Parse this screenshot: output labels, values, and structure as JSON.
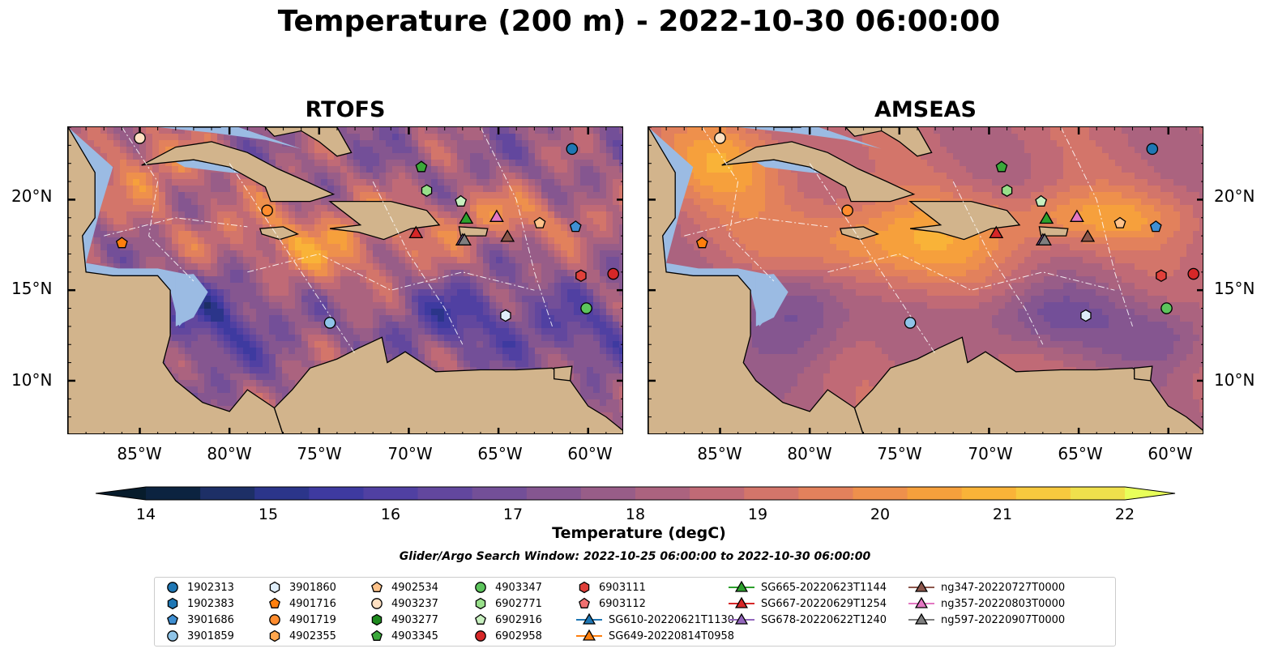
{
  "title": "Temperature (200 m) - 2022-10-30 06:00:00",
  "panels": [
    {
      "title": "RTOFS"
    },
    {
      "title": "AMSEAS"
    }
  ],
  "lat_ticks": [
    "20°N",
    "15°N",
    "10°N"
  ],
  "lon_ticks": [
    "85°W",
    "80°W",
    "75°W",
    "70°W",
    "65°W",
    "60°W"
  ],
  "colorbar": {
    "label": "Temperature (degC)",
    "ticks": [
      "14",
      "15",
      "16",
      "17",
      "18",
      "19",
      "20",
      "21",
      "22"
    ],
    "min": 14,
    "max": 22,
    "step": 0.5,
    "colors": [
      "#0c2340",
      "#1d2f66",
      "#2b358a",
      "#3e3aa0",
      "#5040a2",
      "#62479e",
      "#734f98",
      "#855690",
      "#985d88",
      "#ab637f",
      "#c06a76",
      "#d3756a",
      "#e2815c",
      "#ee904c",
      "#f6a03c",
      "#f9b338",
      "#f7c93e",
      "#efe04c"
    ],
    "over_color": "#e8ff5a",
    "under_color": "#071c2c"
  },
  "search_window": "Glider/Argo Search Window: 2022-10-25 06:00:00 to 2022-10-30 06:00:00",
  "legend": [
    {
      "label": "1902313",
      "marker": "circle",
      "color": "#1f77b4"
    },
    {
      "label": "1902383",
      "marker": "hexagon",
      "color": "#1f77b4"
    },
    {
      "label": "3901686",
      "marker": "pentagon",
      "color": "#3f8fd2"
    },
    {
      "label": "3901859",
      "marker": "circle",
      "color": "#8fc4e8"
    },
    {
      "label": "3901860",
      "marker": "hexagon",
      "color": "#dfeefa"
    },
    {
      "label": "4901716",
      "marker": "pentagon",
      "color": "#ff7f0e"
    },
    {
      "label": "4901719",
      "marker": "circle",
      "color": "#ff8c2e"
    },
    {
      "label": "4902355",
      "marker": "hexagon",
      "color": "#ffa64d"
    },
    {
      "label": "4902534",
      "marker": "pentagon",
      "color": "#ffc38a"
    },
    {
      "label": "4903237",
      "marker": "circle",
      "color": "#ffe0c2"
    },
    {
      "label": "4903277",
      "marker": "hexagon",
      "color": "#1e8a1e"
    },
    {
      "label": "4903345",
      "marker": "pentagon",
      "color": "#3aa83a"
    },
    {
      "label": "4903347",
      "marker": "circle",
      "color": "#5cc45c"
    },
    {
      "label": "6902771",
      "marker": "hexagon",
      "color": "#98df8a"
    },
    {
      "label": "6902916",
      "marker": "pentagon",
      "color": "#c8f0c0"
    },
    {
      "label": "6902958",
      "marker": "circle",
      "color": "#d62728"
    },
    {
      "label": "6903111",
      "marker": "hexagon",
      "color": "#e0403a"
    },
    {
      "label": "6903112",
      "marker": "pentagon",
      "color": "#f07070"
    },
    {
      "label": "SG610-20220621T1130",
      "marker": "triangle-line",
      "color": "#1f77b4"
    },
    {
      "label": "SG649-20220814T0958",
      "marker": "triangle-line",
      "color": "#ff7f0e"
    },
    {
      "label": "SG665-20220623T1144",
      "marker": "triangle-line",
      "color": "#2ca02c"
    },
    {
      "label": "SG667-20220629T1254",
      "marker": "triangle-line",
      "color": "#d62728"
    },
    {
      "label": "SG678-20220622T1240",
      "marker": "triangle-line",
      "color": "#9467bd"
    },
    {
      "label": "ng347-20220727T0000",
      "marker": "triangle-line",
      "color": "#8c564b"
    },
    {
      "label": "ng357-20220803T0000",
      "marker": "triangle-line",
      "color": "#e377c2"
    },
    {
      "label": "ng597-20220907T0000",
      "marker": "triangle-line",
      "color": "#7f7f7f"
    }
  ],
  "map": {
    "lon_range": [
      -89,
      -58
    ],
    "lat_range": [
      7,
      24
    ],
    "colors": {
      "land": "#d2b48c",
      "shallow": "#9bbbe3",
      "coast": "#000000"
    },
    "markers": [
      {
        "label": "4903237",
        "lon": -85.0,
        "lat": 23.4
      },
      {
        "label": "1902313",
        "lon": -60.9,
        "lat": 22.8
      },
      {
        "label": "4903345",
        "lon": -69.3,
        "lat": 21.8
      },
      {
        "label": "6902771",
        "lon": -69.0,
        "lat": 20.5
      },
      {
        "label": "6902916",
        "lon": -67.1,
        "lat": 19.9
      },
      {
        "label": "4901719",
        "lon": -77.9,
        "lat": 19.4
      },
      {
        "label": "4902534",
        "lon": -62.7,
        "lat": 18.7
      },
      {
        "label": "3901686",
        "lon": -60.7,
        "lat": 18.5
      },
      {
        "label": "4901716",
        "lon": -86.0,
        "lat": 17.6
      },
      {
        "label": "6903111",
        "lon": -60.4,
        "lat": 15.8
      },
      {
        "label": "6902958",
        "lon": -58.6,
        "lat": 15.9
      },
      {
        "label": "4903347",
        "lon": -60.1,
        "lat": 14.0
      },
      {
        "label": "3901860",
        "lon": -64.6,
        "lat": 13.6
      },
      {
        "label": "3901859",
        "lon": -74.4,
        "lat": 13.2
      },
      {
        "label": "SG665-20220623T1144",
        "lon": -66.8,
        "lat": 18.9
      },
      {
        "label": "SG667-20220629T1254",
        "lon": -69.6,
        "lat": 18.1
      },
      {
        "label": "SG678-20220622T1240",
        "lon": -67.0,
        "lat": 17.7
      },
      {
        "label": "ng357-20220803T0000",
        "lon": -65.1,
        "lat": 19.0
      },
      {
        "label": "ng347-20220727T0000",
        "lon": -64.5,
        "lat": 17.9
      },
      {
        "label": "ng597-20220907T0000",
        "lon": -66.9,
        "lat": 17.7
      }
    ]
  }
}
